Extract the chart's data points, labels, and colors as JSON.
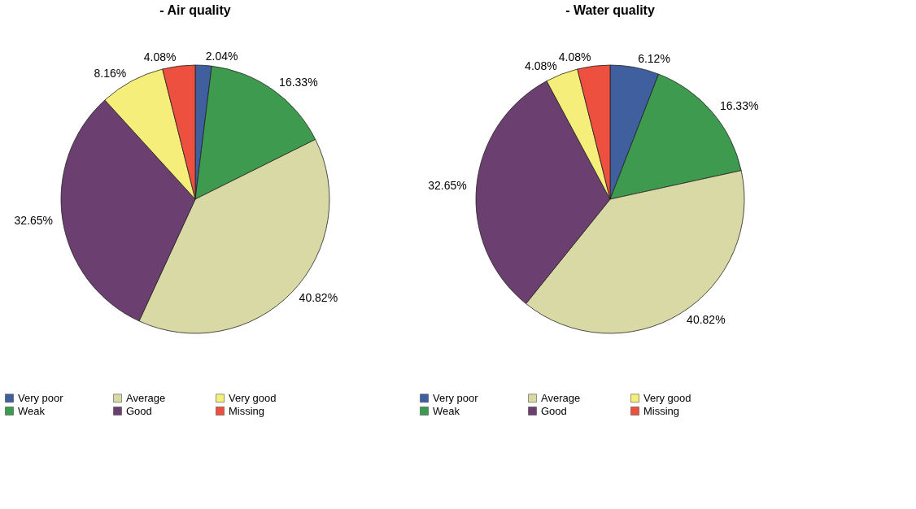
{
  "chart_data": [
    {
      "type": "pie",
      "title": "- Air quality",
      "categories": [
        "Very poor",
        "Weak",
        "Average",
        "Good",
        "Very good",
        "Missing"
      ],
      "values": [
        2.04,
        16.33,
        40.82,
        32.65,
        8.16,
        4.08
      ],
      "value_labels": [
        "2.04%",
        "16.33%",
        "40.82%",
        "32.65%",
        "8.16%",
        "4.08%"
      ],
      "colors": [
        "#3f5f9f",
        "#3e9a4e",
        "#d9d9a6",
        "#6b4070",
        "#f5ee7a",
        "#ee5040"
      ],
      "legend": "bottom"
    },
    {
      "type": "pie",
      "title": "- Water quality",
      "categories": [
        "Very poor",
        "Weak",
        "Average",
        "Good",
        "Very good",
        "Missing"
      ],
      "values": [
        6.12,
        16.33,
        40.82,
        32.65,
        4.08,
        4.08
      ],
      "value_labels": [
        "6.12%",
        "16.33%",
        "40.82%",
        "32.65%",
        "4.08%",
        "4.08%"
      ],
      "colors": [
        "#3f5f9f",
        "#3e9a4e",
        "#d9d9a6",
        "#6b4070",
        "#f5ee7a",
        "#ee5040"
      ],
      "legend": "bottom"
    }
  ]
}
